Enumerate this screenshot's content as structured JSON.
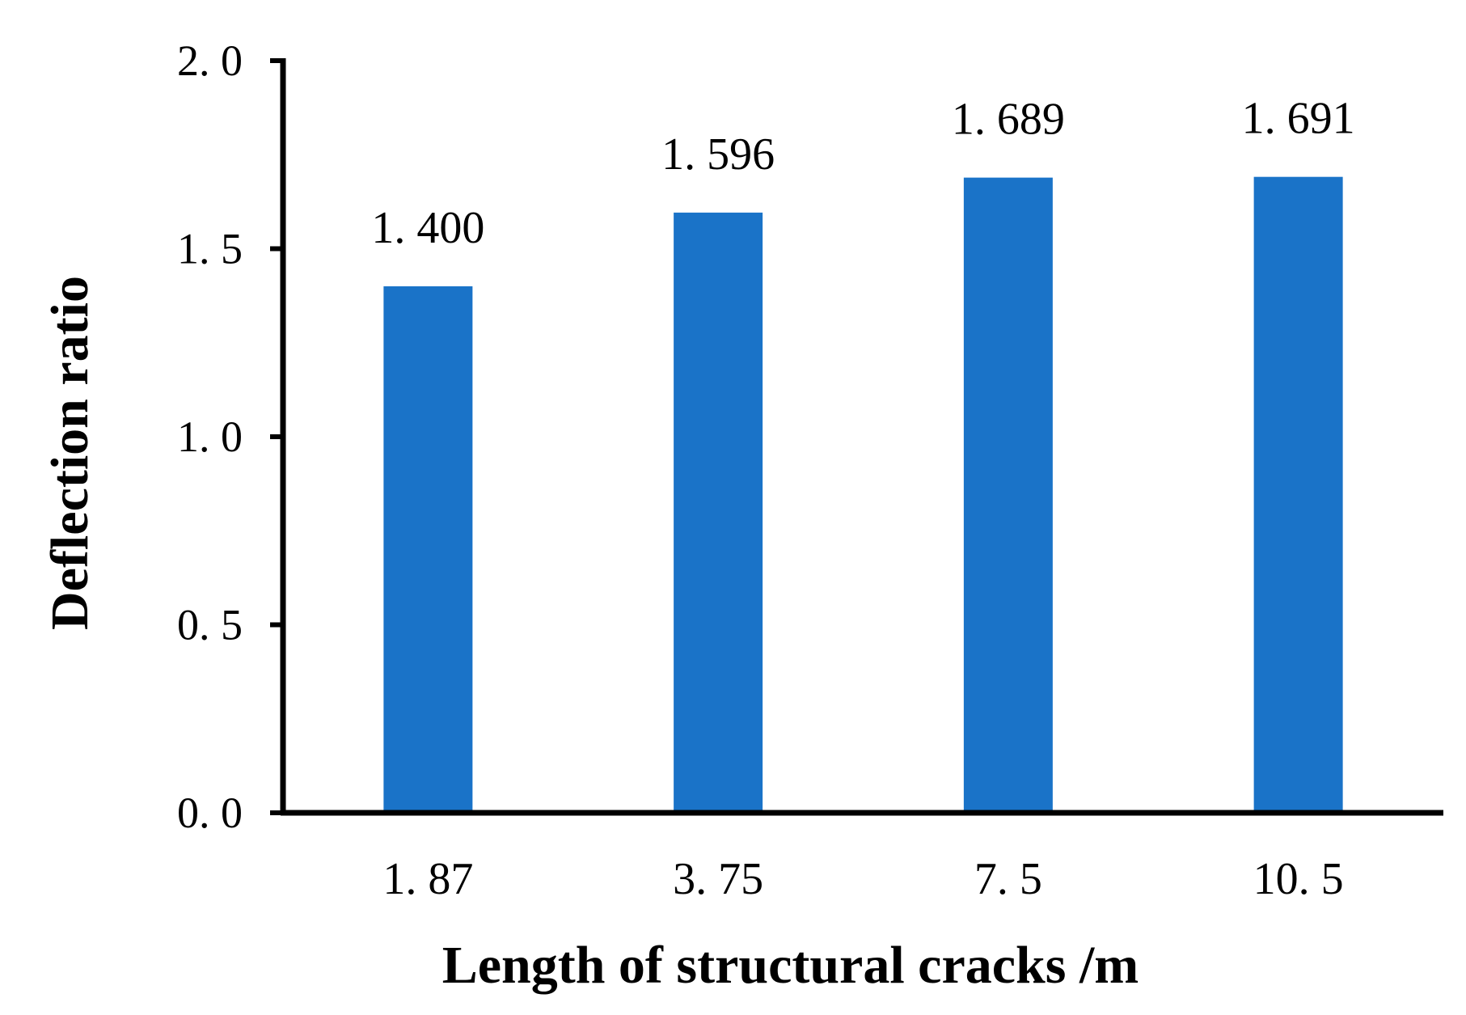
{
  "chart_data": {
    "type": "bar",
    "categories": [
      "1. 87",
      "3. 75",
      "7. 5",
      "10. 5"
    ],
    "values": [
      1.4,
      1.596,
      1.689,
      1.691
    ],
    "data_labels": [
      "1. 400",
      "1. 596",
      "1. 689",
      "1. 691"
    ],
    "yticks": [
      0.0,
      0.5,
      1.0,
      1.5,
      2.0
    ],
    "ytick_labels": [
      "0. 0",
      "0. 5",
      "1. 0",
      "1. 5",
      "2. 0"
    ],
    "ylim": [
      0,
      2.0
    ],
    "xlabel": "Length of structural cracks /m",
    "ylabel": "Deflection ratio",
    "bar_color": "#1a73c8",
    "grid": false,
    "legend": "none"
  }
}
